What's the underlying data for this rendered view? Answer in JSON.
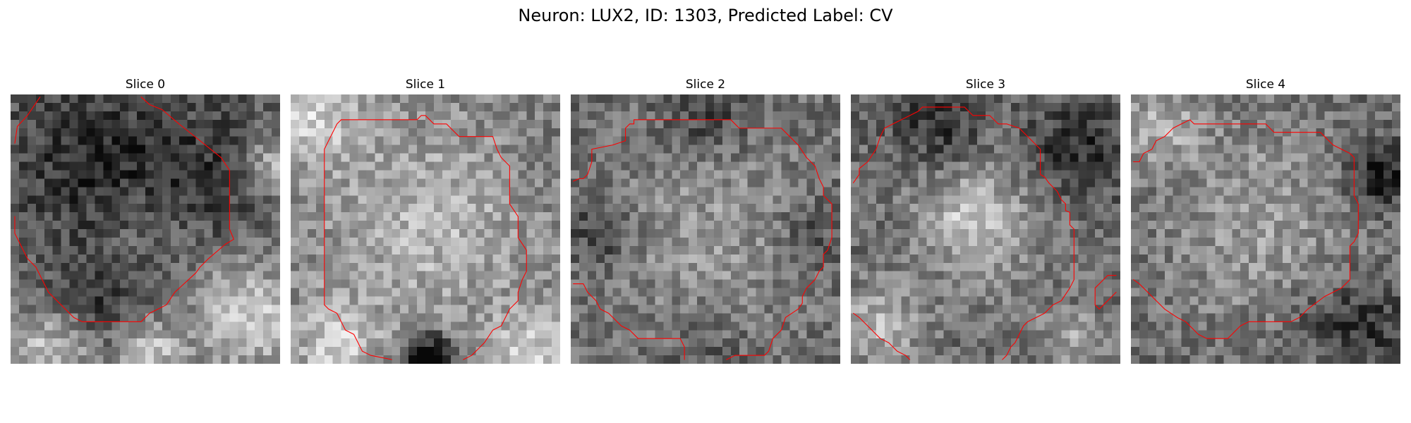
{
  "figure": {
    "title": "Neuron: LUX2, ID: 1303, Predicted Label: CV"
  },
  "colors": {
    "background": "#ffffff",
    "contour": "#ff0000",
    "colormap": "gray"
  },
  "panels": [
    {
      "title": "Slice 0",
      "seed": 11,
      "grid": 32,
      "blobs": [
        {
          "cx": 16,
          "cy": 16,
          "r": 12,
          "a": 0.05
        },
        {
          "cx": 10,
          "cy": 8,
          "r": 8,
          "a": -0.25
        },
        {
          "cx": 22,
          "cy": 10,
          "r": 7,
          "a": -0.2
        },
        {
          "cx": 10,
          "cy": 24,
          "r": 6,
          "a": -0.2
        },
        {
          "cx": 28,
          "cy": 26,
          "r": 7,
          "a": 0.45
        },
        {
          "cx": 31,
          "cy": 8,
          "r": 4,
          "a": 0.35
        },
        {
          "cx": 4,
          "cy": 30,
          "r": 6,
          "a": 0.4
        },
        {
          "cx": 16,
          "cy": 30,
          "r": 4,
          "a": 0.4
        },
        {
          "cx": 16,
          "cy": 14,
          "r": 6,
          "a": 0.1
        }
      ],
      "base": 0.35,
      "contours": [
        [
          [
            0.5,
            5.8
          ],
          [
            0.8,
            3.8
          ],
          [
            2,
            2.5
          ],
          [
            3.5,
            0.3
          ]
        ],
        [
          [
            15.5,
            0.3
          ],
          [
            16.5,
            1.2
          ],
          [
            18,
            1.8
          ],
          [
            20,
            3.5
          ],
          [
            25,
            7.5
          ],
          [
            26,
            9
          ],
          [
            26,
            16
          ],
          [
            26.5,
            17.2
          ],
          [
            25.5,
            17.8
          ],
          [
            23.5,
            19.5
          ],
          [
            22.5,
            20.5
          ],
          [
            22,
            21.2
          ],
          [
            19.5,
            23.5
          ],
          [
            18.5,
            25
          ],
          [
            17.5,
            25.5
          ],
          [
            16.5,
            26
          ],
          [
            15.5,
            27
          ],
          [
            8.5,
            27
          ],
          [
            7.5,
            26.5
          ],
          [
            6.5,
            25.5
          ],
          [
            5.5,
            24.5
          ],
          [
            4.5,
            23.5
          ],
          [
            3.5,
            21.5
          ],
          [
            3,
            20.5
          ],
          [
            2,
            19.5
          ],
          [
            1,
            17.5
          ],
          [
            0.5,
            16.5
          ],
          [
            0.5,
            14.5
          ]
        ]
      ]
    },
    {
      "title": "Slice 1",
      "seed": 23,
      "grid": 32,
      "blobs": [
        {
          "cx": 16,
          "cy": 15,
          "r": 12,
          "a": 0.22
        },
        {
          "cx": 2,
          "cy": 2,
          "r": 6,
          "a": 0.3
        },
        {
          "cx": 16,
          "cy": 31,
          "r": 3,
          "a": -0.6
        },
        {
          "cx": 5,
          "cy": 29,
          "r": 5,
          "a": 0.3
        },
        {
          "cx": 28,
          "cy": 30,
          "r": 5,
          "a": 0.3
        },
        {
          "cx": 28,
          "cy": 6,
          "r": 4,
          "a": -0.05
        }
      ],
      "base": 0.5,
      "contours": [
        [
          [
            12,
            31.5
          ],
          [
            9.5,
            31
          ],
          [
            8.5,
            30.5
          ],
          [
            8,
            29.5
          ],
          [
            7.5,
            28.5
          ],
          [
            6.5,
            28
          ],
          [
            6,
            27
          ],
          [
            5.5,
            26
          ],
          [
            4.5,
            25.5
          ],
          [
            4,
            25
          ],
          [
            4,
            6.5
          ],
          [
            4.5,
            5.5
          ],
          [
            5,
            4.5
          ],
          [
            5.5,
            3.5
          ],
          [
            6,
            3
          ],
          [
            15,
            3
          ],
          [
            15.5,
            2.5
          ],
          [
            16,
            2.5
          ],
          [
            16.5,
            3
          ],
          [
            17,
            3.5
          ],
          [
            18.5,
            3.5
          ],
          [
            19.5,
            4.5
          ],
          [
            20,
            5
          ],
          [
            24,
            5
          ],
          [
            24.5,
            6.5
          ],
          [
            25,
            7.5
          ],
          [
            26,
            8.5
          ],
          [
            26,
            13
          ],
          [
            27,
            14.5
          ],
          [
            27,
            17
          ],
          [
            28,
            18.5
          ],
          [
            28,
            21
          ],
          [
            27.5,
            22
          ],
          [
            27,
            23.5
          ],
          [
            27,
            24.5
          ],
          [
            26,
            25.5
          ],
          [
            25.5,
            26.5
          ],
          [
            25,
            27.5
          ],
          [
            24,
            28
          ],
          [
            23,
            29.5
          ],
          [
            22,
            30.5
          ],
          [
            21.5,
            31
          ],
          [
            20.5,
            31.5
          ]
        ]
      ]
    },
    {
      "title": "Slice 2",
      "seed": 37,
      "grid": 32,
      "blobs": [
        {
          "cx": 16,
          "cy": 16,
          "r": 12,
          "a": 0.18
        },
        {
          "cx": 3,
          "cy": 16,
          "r": 4,
          "a": -0.2
        },
        {
          "cx": 28,
          "cy": 16,
          "r": 4,
          "a": -0.15
        },
        {
          "cx": 16,
          "cy": 2,
          "r": 5,
          "a": -0.2
        },
        {
          "cx": 16,
          "cy": 30,
          "r": 5,
          "a": -0.1
        }
      ],
      "base": 0.42,
      "contours": [
        [
          [
            0.3,
            10.3
          ],
          [
            1,
            10
          ],
          [
            1.5,
            10
          ],
          [
            2,
            9.5
          ],
          [
            2.5,
            8
          ],
          [
            2.5,
            6.5
          ],
          [
            5,
            6
          ],
          [
            6.5,
            5.5
          ],
          [
            6.5,
            4.5
          ],
          [
            6.5,
            4
          ],
          [
            7,
            3.5
          ],
          [
            7.5,
            3.5
          ],
          [
            7.5,
            3
          ],
          [
            19,
            3
          ],
          [
            20,
            4
          ],
          [
            25,
            4
          ],
          [
            26,
            5
          ],
          [
            27,
            6
          ],
          [
            28,
            7.5
          ],
          [
            29,
            8.5
          ],
          [
            29.5,
            10
          ],
          [
            30,
            11
          ],
          [
            30,
            12
          ],
          [
            31,
            13
          ],
          [
            31,
            17
          ],
          [
            30.5,
            18.5
          ],
          [
            30,
            19
          ],
          [
            30,
            20.5
          ],
          [
            29.5,
            21
          ],
          [
            29,
            22
          ],
          [
            28,
            23
          ],
          [
            27.5,
            24
          ],
          [
            27.5,
            24.8
          ],
          [
            27,
            25.5
          ],
          [
            25.5,
            26.5
          ],
          [
            25,
            28
          ],
          [
            24,
            29
          ],
          [
            23.5,
            30.5
          ],
          [
            23,
            31
          ],
          [
            19.5,
            31
          ],
          [
            18.5,
            31.5
          ]
        ],
        [
          [
            0.3,
            22.5
          ],
          [
            1.5,
            22.5
          ],
          [
            2,
            23.5
          ],
          [
            2.5,
            24
          ],
          [
            3,
            24.5
          ],
          [
            3.5,
            25.5
          ],
          [
            4.5,
            26
          ],
          [
            5,
            26.5
          ],
          [
            6,
            27.5
          ],
          [
            7,
            28
          ],
          [
            8,
            29
          ],
          [
            13,
            29
          ],
          [
            13.5,
            30
          ],
          [
            13.5,
            31.5
          ]
        ]
      ]
    },
    {
      "title": "Slice 3",
      "seed": 51,
      "grid": 32,
      "blobs": [
        {
          "cx": 15,
          "cy": 15,
          "r": 11,
          "a": 0.15
        },
        {
          "cx": 14,
          "cy": 14,
          "r": 5,
          "a": 0.25
        },
        {
          "cx": 3,
          "cy": 27,
          "r": 5,
          "a": 0.3
        },
        {
          "cx": 26,
          "cy": 29,
          "r": 4,
          "a": 0.25
        },
        {
          "cx": 26,
          "cy": 6,
          "r": 6,
          "a": -0.25
        },
        {
          "cx": 10,
          "cy": 3,
          "r": 5,
          "a": -0.25
        }
      ],
      "base": 0.4,
      "contours": [
        [
          [
            0.3,
            10.5
          ],
          [
            1,
            9.5
          ],
          [
            1,
            8.8
          ],
          [
            2,
            8
          ],
          [
            3,
            6.5
          ],
          [
            3.5,
            5
          ],
          [
            4,
            4
          ],
          [
            5,
            3.5
          ],
          [
            6,
            3
          ],
          [
            7,
            2.5
          ],
          [
            8,
            2
          ],
          [
            8.5,
            1.5
          ],
          [
            13.5,
            1.5
          ],
          [
            14.5,
            2.5
          ],
          [
            16.5,
            2.5
          ],
          [
            17.5,
            3.5
          ],
          [
            18.5,
            3.5
          ],
          [
            20,
            4
          ],
          [
            21.5,
            5.5
          ],
          [
            22.5,
            6.5
          ],
          [
            22.5,
            9.5
          ],
          [
            23,
            9.8
          ],
          [
            23.5,
            10.5
          ],
          [
            24.5,
            11.5
          ],
          [
            25,
            12.5
          ],
          [
            25.5,
            13
          ],
          [
            25.5,
            13.8
          ],
          [
            26,
            14
          ],
          [
            26,
            15.5
          ],
          [
            26.5,
            16
          ],
          [
            26.5,
            22
          ],
          [
            26,
            23
          ],
          [
            25,
            24.5
          ],
          [
            24,
            25
          ],
          [
            23.5,
            25.5
          ],
          [
            23,
            26
          ],
          [
            22,
            26.5
          ],
          [
            21,
            27
          ],
          [
            20.5,
            27.5
          ],
          [
            20,
            28.5
          ],
          [
            19.5,
            29.5
          ],
          [
            19,
            30
          ],
          [
            18.5,
            31
          ],
          [
            18,
            31.5
          ]
        ],
        [
          [
            0.3,
            26
          ],
          [
            1,
            26.5
          ],
          [
            2,
            27.5
          ],
          [
            3,
            28.5
          ],
          [
            3.5,
            29
          ],
          [
            4.5,
            29.5
          ],
          [
            5,
            30
          ],
          [
            5.5,
            30.5
          ],
          [
            6.5,
            31
          ],
          [
            7,
            31.5
          ]
        ],
        [
          [
            31.5,
            21.5
          ],
          [
            30.5,
            21.5
          ],
          [
            29.5,
            22.5
          ],
          [
            29,
            23
          ],
          [
            29,
            25
          ],
          [
            29.5,
            25.5
          ],
          [
            30,
            25
          ],
          [
            30.5,
            24.5
          ],
          [
            31,
            24
          ],
          [
            31.5,
            23.5
          ]
        ]
      ]
    },
    {
      "title": "Slice 4",
      "seed": 67,
      "grid": 32,
      "blobs": [
        {
          "cx": 15,
          "cy": 15,
          "r": 12,
          "a": 0.2
        },
        {
          "cx": 29,
          "cy": 9,
          "r": 4,
          "a": -0.35
        },
        {
          "cx": 22,
          "cy": 26,
          "r": 5,
          "a": -0.1
        },
        {
          "cx": 3,
          "cy": 3,
          "r": 5,
          "a": 0.25
        },
        {
          "cx": 28,
          "cy": 27,
          "r": 6,
          "a": -0.2
        }
      ],
      "base": 0.42,
      "contours": [
        [
          [
            0.3,
            8
          ],
          [
            1,
            8
          ],
          [
            1.5,
            7
          ],
          [
            2.5,
            6.5
          ],
          [
            3,
            5.5
          ],
          [
            4,
            5
          ],
          [
            4.5,
            4.5
          ],
          [
            5,
            4
          ],
          [
            6,
            3.5
          ],
          [
            7,
            3
          ],
          [
            7.5,
            3.5
          ],
          [
            16,
            3.5
          ],
          [
            16.5,
            4
          ],
          [
            17,
            4.5
          ],
          [
            22.5,
            4.5
          ],
          [
            23,
            5
          ],
          [
            23.5,
            5.5
          ],
          [
            24,
            6
          ],
          [
            25,
            6.5
          ],
          [
            26,
            7
          ],
          [
            26.5,
            7.5
          ],
          [
            26.5,
            12
          ],
          [
            27,
            13
          ],
          [
            27,
            16.5
          ],
          [
            26.5,
            17.5
          ],
          [
            26,
            18
          ],
          [
            26,
            22
          ],
          [
            25.5,
            22.5
          ],
          [
            25,
            23
          ],
          [
            24,
            23.5
          ],
          [
            23,
            24
          ],
          [
            21,
            25.5
          ],
          [
            20,
            26.5
          ],
          [
            19,
            27
          ],
          [
            14,
            27
          ],
          [
            13,
            27.5
          ],
          [
            12,
            28.5
          ],
          [
            11.5,
            29
          ],
          [
            9,
            29
          ],
          [
            8,
            28.5
          ],
          [
            7,
            27.5
          ],
          [
            6.5,
            27
          ],
          [
            5.5,
            26.5
          ],
          [
            4,
            25.5
          ],
          [
            3,
            24.5
          ],
          [
            2,
            23.5
          ],
          [
            1,
            22.5
          ],
          [
            0.3,
            22
          ]
        ]
      ]
    }
  ]
}
